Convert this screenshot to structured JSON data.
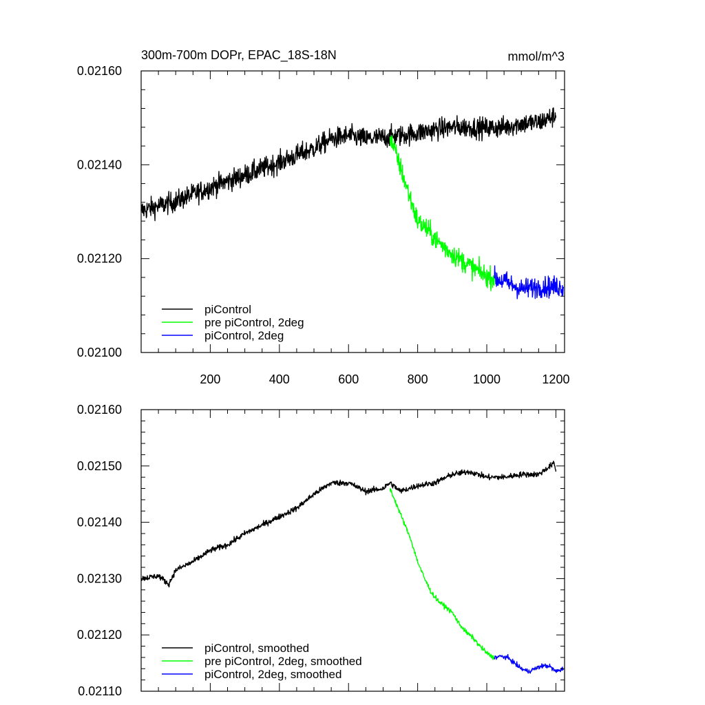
{
  "chart_data": [
    {
      "type": "line",
      "title": "300m-700m DOPr, EPAC_18S-18N",
      "units": "mmol/m^3",
      "xlim": [
        0,
        1225
      ],
      "ylim": [
        0.021,
        0.0216
      ],
      "yticks": [
        0.021,
        0.0212,
        0.0214,
        0.0216
      ],
      "yticklabels": [
        "0.02100",
        "0.02120",
        "0.02140",
        "0.02160"
      ],
      "xticks": [
        200,
        400,
        600,
        800,
        1000,
        1200
      ],
      "xticklabels": [
        "200",
        "400",
        "600",
        "800",
        "1000",
        "1200"
      ],
      "legend_position": "bottom-left",
      "series": [
        {
          "name": "piControl",
          "color": "#000000",
          "x": [
            0,
            100,
            200,
            300,
            400,
            500,
            550,
            600,
            650,
            700,
            750,
            800,
            850,
            900,
            950,
            1000,
            1050,
            1100,
            1150,
            1200
          ],
          "values": [
            0.021302,
            0.021322,
            0.021352,
            0.021378,
            0.021405,
            0.021435,
            0.021455,
            0.021462,
            0.021455,
            0.021458,
            0.021462,
            0.021468,
            0.021475,
            0.02148,
            0.02148,
            0.021478,
            0.02148,
            0.021488,
            0.02149,
            0.021505
          ],
          "noise": 2.2e-05
        },
        {
          "name": "pre piControl, 2deg",
          "color": "#00ff00",
          "x": [
            720,
            750,
            780,
            800,
            830,
            860,
            900,
            950,
            1000,
            1022
          ],
          "values": [
            0.02146,
            0.021395,
            0.021325,
            0.02128,
            0.02126,
            0.021235,
            0.02121,
            0.021185,
            0.021162,
            0.021158
          ],
          "noise": 2.2e-05
        },
        {
          "name": "piControl, 2deg",
          "color": "#0000ff",
          "x": [
            1022,
            1050,
            1100,
            1150,
            1200,
            1222
          ],
          "values": [
            0.021158,
            0.021152,
            0.021135,
            0.02114,
            0.02114,
            0.02114
          ],
          "noise": 2.2e-05
        }
      ]
    },
    {
      "type": "line",
      "title": "",
      "units": "",
      "xlim": [
        0,
        1225
      ],
      "ylim": [
        0.0211,
        0.0216
      ],
      "yticks": [
        0.0211,
        0.0212,
        0.0213,
        0.0214,
        0.0215,
        0.0216
      ],
      "yticklabels": [
        "0.02110",
        "0.02120",
        "0.02130",
        "0.02140",
        "0.02150",
        "0.02160"
      ],
      "xticks": [
        200,
        400,
        600,
        800,
        1000,
        1200
      ],
      "xticklabels": [],
      "legend_position": "bottom-left",
      "series": [
        {
          "name": "piControl, smoothed",
          "color": "#000000",
          "x": [
            0,
            50,
            80,
            100,
            150,
            200,
            250,
            300,
            350,
            400,
            450,
            500,
            550,
            600,
            650,
            700,
            720,
            750,
            800,
            850,
            900,
            950,
            1000,
            1050,
            1100,
            1150,
            1195,
            1200
          ],
          "values": [
            0.0213,
            0.021305,
            0.02129,
            0.021315,
            0.02133,
            0.02135,
            0.02136,
            0.02138,
            0.021395,
            0.02141,
            0.021425,
            0.02145,
            0.02147,
            0.02147,
            0.021455,
            0.02146,
            0.02147,
            0.021455,
            0.021465,
            0.02147,
            0.021485,
            0.02149,
            0.02148,
            0.02148,
            0.021485,
            0.021485,
            0.021505,
            0.02149
          ],
          "noise": 5e-06
        },
        {
          "name": "pre piControl, 2deg, smoothed",
          "color": "#00ff00",
          "x": [
            720,
            740,
            760,
            780,
            800,
            820,
            840,
            860,
            880,
            900,
            920,
            940,
            960,
            980,
            1000,
            1022
          ],
          "values": [
            0.02146,
            0.02143,
            0.0214,
            0.02137,
            0.02133,
            0.0213,
            0.021275,
            0.02126,
            0.02125,
            0.02124,
            0.02122,
            0.021205,
            0.021195,
            0.02118,
            0.021168,
            0.021158
          ],
          "noise": 4e-06
        },
        {
          "name": "piControl, 2deg, smoothed",
          "color": "#0000ff",
          "x": [
            1022,
            1040,
            1060,
            1080,
            1100,
            1120,
            1140,
            1160,
            1180,
            1200,
            1222
          ],
          "values": [
            0.02116,
            0.021162,
            0.02116,
            0.02115,
            0.02114,
            0.021135,
            0.02114,
            0.021145,
            0.021145,
            0.021135,
            0.02114
          ],
          "noise": 4e-06
        }
      ]
    }
  ]
}
